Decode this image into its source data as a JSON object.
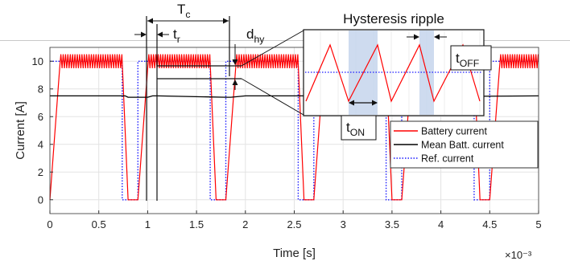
{
  "chart_data": {
    "type": "line",
    "xlabel": "Time [s]",
    "ylabel": "Current [A]",
    "x_scale_label": "×10⁻³",
    "xlim": [
      0,
      5
    ],
    "ylim": [
      -1,
      11
    ],
    "x_ticks": [
      0,
      0.5,
      1,
      1.5,
      2,
      2.5,
      3,
      3.5,
      4,
      4.5,
      5
    ],
    "x_tick_labels": [
      "0",
      "0.5",
      "1",
      "1.5",
      "2",
      "2.5",
      "3",
      "3.5",
      "4",
      "4.5",
      "5"
    ],
    "y_ticks": [
      0,
      2,
      4,
      6,
      8,
      10
    ],
    "y_tick_labels": [
      "0",
      "2",
      "4",
      "6",
      "8",
      "10"
    ],
    "grid": true,
    "legend_position": "right",
    "period": 0.9,
    "on_duration": 0.74,
    "series": [
      {
        "name": "Battery current",
        "color": "#ff0000",
        "style": "solid",
        "ripple_high": 10.5,
        "ripple_low": 9.5
      },
      {
        "name": "Mean Batt. current",
        "color": "#000000",
        "style": "solid",
        "x": [
          0,
          0.77,
          0.8,
          1.0,
          1.05,
          1.1,
          1.8,
          1.85,
          2.0,
          2.6,
          2.65,
          5
        ],
        "y": [
          7.5,
          7.5,
          7.4,
          7.4,
          7.5,
          7.5,
          7.4,
          7.4,
          7.5,
          7.5,
          7.4,
          7.5
        ]
      },
      {
        "name": "Ref. current",
        "color": "#1a1aff",
        "style": "dotted",
        "x": [
          0,
          0.74,
          0.74,
          0.9,
          0.9,
          1.64,
          1.64,
          1.8,
          1.8,
          2.54,
          2.54,
          2.7,
          2.7,
          3.44,
          3.44,
          3.6,
          3.6,
          4.34,
          4.34,
          4.5,
          4.5,
          5
        ],
        "y": [
          10,
          10,
          0,
          0,
          10,
          10,
          0,
          0,
          10,
          10,
          0,
          0,
          10,
          10,
          0,
          0,
          10,
          10,
          0,
          0,
          10,
          10
        ]
      }
    ],
    "annotations": {
      "t_c": "T",
      "t_c_sub": "c",
      "t_r": "t",
      "t_r_sub": "r",
      "d_hy": "d",
      "d_hy_sub": "hy",
      "inset_title": "Hysteresis ripple",
      "t_on": "t",
      "t_on_sub": "ON",
      "t_off": "t",
      "t_off_sub": "OFF"
    }
  }
}
